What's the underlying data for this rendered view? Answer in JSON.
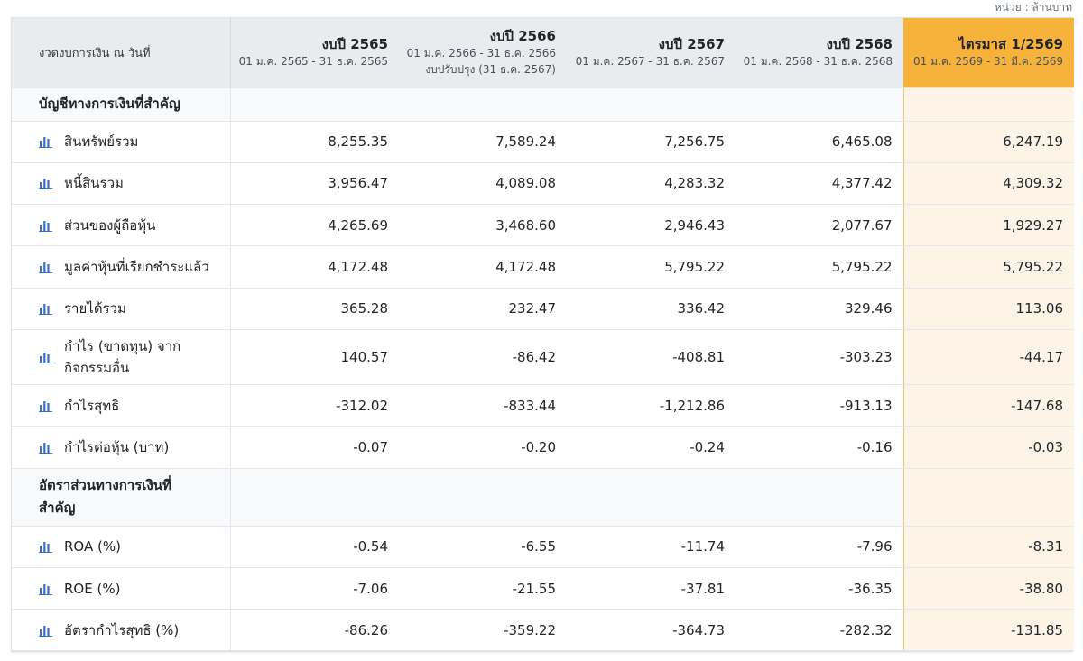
{
  "unit_note": "หน่วย : ล้านบาท",
  "header": {
    "first": "งวดงบการเงิน ณ วันที่",
    "columns": [
      {
        "title": "งบปี 2565",
        "sub": "01 ม.ค. 2565 - 31 ธ.ค. 2565",
        "sub2": ""
      },
      {
        "title": "งบปี 2566",
        "sub": "01 ม.ค. 2566 - 31 ธ.ค. 2566",
        "sub2": "งบปรับปรุง (31 ธ.ค. 2567)"
      },
      {
        "title": "งบปี 2567",
        "sub": "01 ม.ค. 2567 - 31 ธ.ค. 2567",
        "sub2": ""
      },
      {
        "title": "งบปี 2568",
        "sub": "01 ม.ค. 2568 - 31 ธ.ค. 2568",
        "sub2": ""
      },
      {
        "title": "ไตรมาส 1/2569",
        "sub": "01 ม.ค. 2569 - 31 มี.ค. 2569",
        "sub2": ""
      }
    ]
  },
  "sections": [
    {
      "title": "บัญชีทางการเงินที่สำคัญ",
      "rows": [
        {
          "label": "สินทรัพย์รวม",
          "values": [
            "8,255.35",
            "7,589.24",
            "7,256.75",
            "6,465.08",
            "6,247.19"
          ]
        },
        {
          "label": "หนี้สินรวม",
          "values": [
            "3,956.47",
            "4,089.08",
            "4,283.32",
            "4,377.42",
            "4,309.32"
          ]
        },
        {
          "label": "ส่วนของผู้ถือหุ้น",
          "values": [
            "4,265.69",
            "3,468.60",
            "2,946.43",
            "2,077.67",
            "1,929.27"
          ]
        },
        {
          "label": "มูลค่าหุ้นที่เรียกชำระแล้ว",
          "values": [
            "4,172.48",
            "4,172.48",
            "5,795.22",
            "5,795.22",
            "5,795.22"
          ]
        },
        {
          "label": "รายได้รวม",
          "values": [
            "365.28",
            "232.47",
            "336.42",
            "329.46",
            "113.06"
          ]
        },
        {
          "label": "กำไร (ขาดทุน) จาก",
          "label2": "กิจกรรมอื่น",
          "values": [
            "140.57",
            "-86.42",
            "-408.81",
            "-303.23",
            "-44.17"
          ]
        },
        {
          "label": "กำไรสุทธิ",
          "values": [
            "-312.02",
            "-833.44",
            "-1,212.86",
            "-913.13",
            "-147.68"
          ]
        },
        {
          "label": "กำไรต่อหุ้น (บาท)",
          "values": [
            "-0.07",
            "-0.20",
            "-0.24",
            "-0.16",
            "-0.03"
          ]
        }
      ]
    },
    {
      "title": "อัตราส่วนทางการเงินที่",
      "title2": "สำคัญ",
      "rows": [
        {
          "label": "ROA (%)",
          "values": [
            "-0.54",
            "-6.55",
            "-11.74",
            "-7.96",
            "-8.31"
          ]
        },
        {
          "label": "ROE (%)",
          "values": [
            "-7.06",
            "-21.55",
            "-37.81",
            "-36.35",
            "-38.80"
          ]
        },
        {
          "label": "อัตรากำไรสุทธิ (%)",
          "values": [
            "-86.26",
            "-359.22",
            "-364.73",
            "-282.32",
            "-131.85"
          ]
        }
      ]
    }
  ],
  "icon_name": "bar-chart-icon",
  "colors": {
    "highlight_header": "#f7b23b",
    "highlight_cell": "#fdf3e6",
    "icon": "#3a6fc4",
    "header_bg": "#e9ecef"
  }
}
